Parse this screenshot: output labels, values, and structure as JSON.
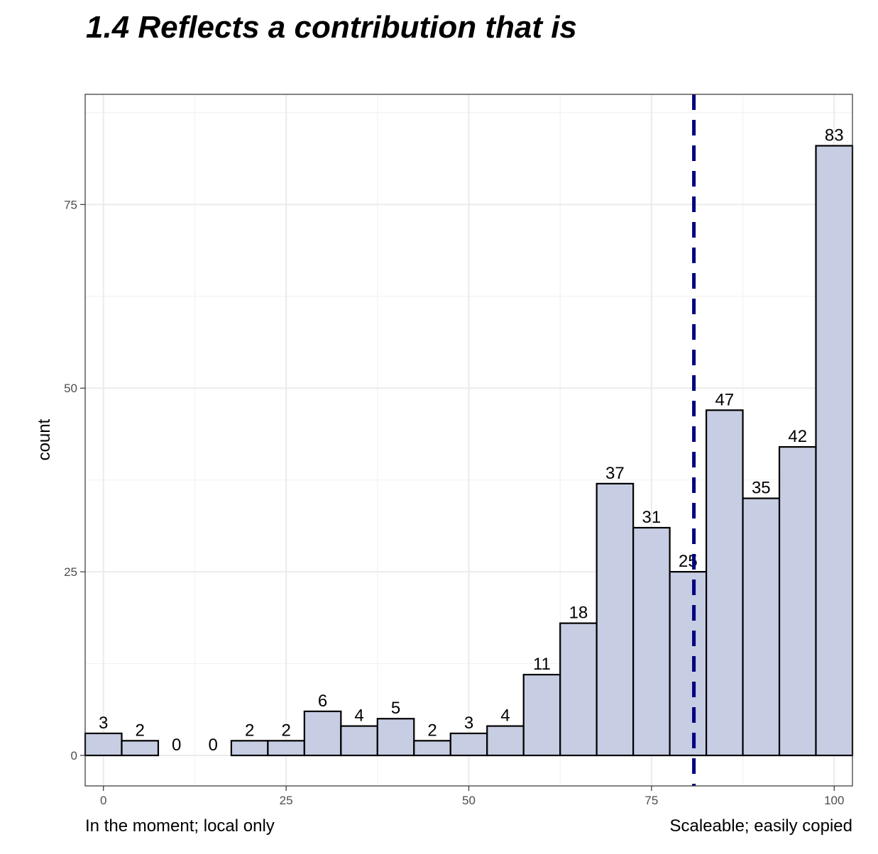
{
  "chart_data": {
    "type": "bar",
    "title": "1.4  Reflects a contribution that is",
    "ylabel": "count",
    "x_left_label": "In the moment; local only",
    "x_right_label": "Scaleable; easily copied",
    "bins": [
      {
        "center": 0,
        "count": 3
      },
      {
        "center": 5,
        "count": 2
      },
      {
        "center": 10,
        "count": 0
      },
      {
        "center": 15,
        "count": 0
      },
      {
        "center": 20,
        "count": 2
      },
      {
        "center": 25,
        "count": 2
      },
      {
        "center": 30,
        "count": 6
      },
      {
        "center": 35,
        "count": 4
      },
      {
        "center": 40,
        "count": 5
      },
      {
        "center": 45,
        "count": 2
      },
      {
        "center": 50,
        "count": 3
      },
      {
        "center": 55,
        "count": 4
      },
      {
        "center": 60,
        "count": 11
      },
      {
        "center": 65,
        "count": 18
      },
      {
        "center": 70,
        "count": 37
      },
      {
        "center": 75,
        "count": 31
      },
      {
        "center": 80,
        "count": 25
      },
      {
        "center": 85,
        "count": 47
      },
      {
        "center": 90,
        "count": 35
      },
      {
        "center": 95,
        "count": 42
      },
      {
        "center": 100,
        "count": 83
      }
    ],
    "bin_width": 5,
    "xlim": [
      -2.5,
      102.5
    ],
    "ylim": [
      -4.15,
      90
    ],
    "x_ticks": [
      0,
      25,
      50,
      75,
      100
    ],
    "y_ticks": [
      0,
      25,
      50,
      75
    ],
    "reference_line": {
      "x": 80.8,
      "style": "dashed",
      "color": "#000080"
    },
    "bar_fill": "#c7cde2",
    "bar_stroke": "#000000",
    "grid": true,
    "legend": "none"
  }
}
